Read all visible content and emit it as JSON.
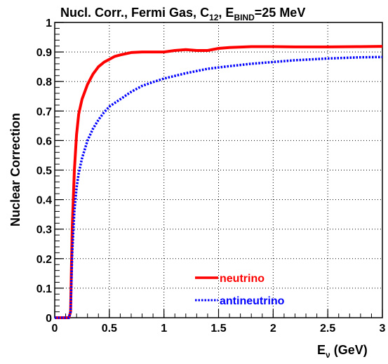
{
  "chart_data": {
    "type": "line",
    "title": {
      "prefix": "Nucl. Corr.,  Fermi Gas, C",
      "sub1": "12",
      "mid": ", E",
      "sub2": "BIND",
      "suffix": "=25 MeV"
    },
    "xlabel": {
      "main": "E",
      "sub": "ν",
      "suffix": " (GeV)"
    },
    "ylabel": "Nuclear Correction",
    "xlim": [
      0,
      3
    ],
    "ylim": [
      0,
      1
    ],
    "xticks": [
      {
        "value": 0,
        "label": "0"
      },
      {
        "value": 0.5,
        "label": "0.5"
      },
      {
        "value": 1,
        "label": "1"
      },
      {
        "value": 1.5,
        "label": "1.5"
      },
      {
        "value": 2,
        "label": "2"
      },
      {
        "value": 2.5,
        "label": "2.5"
      },
      {
        "value": 3,
        "label": "3"
      }
    ],
    "yticks": [
      {
        "value": 0,
        "label": "0"
      },
      {
        "value": 0.1,
        "label": "0.1"
      },
      {
        "value": 0.2,
        "label": "0.2"
      },
      {
        "value": 0.3,
        "label": "0.3"
      },
      {
        "value": 0.4,
        "label": "0.4"
      },
      {
        "value": 0.5,
        "label": "0.5"
      },
      {
        "value": 0.6,
        "label": "0.6"
      },
      {
        "value": 0.7,
        "label": "0.7"
      },
      {
        "value": 0.8,
        "label": "0.8"
      },
      {
        "value": 0.9,
        "label": "0.9"
      },
      {
        "value": 1,
        "label": "1"
      }
    ],
    "grid": true,
    "legend_position": "bottom-center",
    "series": [
      {
        "name": "neutrino",
        "color": "#ff0000",
        "style": "solid",
        "x": [
          0,
          0.13,
          0.145,
          0.16,
          0.18,
          0.2,
          0.22,
          0.25,
          0.3,
          0.35,
          0.4,
          0.45,
          0.5,
          0.55,
          0.6,
          0.7,
          0.8,
          0.9,
          1.0,
          1.1,
          1.2,
          1.3,
          1.4,
          1.5,
          1.6,
          1.8,
          2.0,
          2.2,
          2.5,
          2.8,
          3.0
        ],
        "y": [
          0,
          0,
          0.02,
          0.3,
          0.5,
          0.62,
          0.69,
          0.74,
          0.79,
          0.825,
          0.85,
          0.865,
          0.875,
          0.885,
          0.89,
          0.898,
          0.9,
          0.9,
          0.9,
          0.905,
          0.908,
          0.905,
          0.905,
          0.912,
          0.915,
          0.918,
          0.918,
          0.917,
          0.917,
          0.918,
          0.919
        ]
      },
      {
        "name": "antineutrino",
        "color": "#0000ff",
        "style": "dotted",
        "x": [
          0,
          0.13,
          0.145,
          0.16,
          0.18,
          0.2,
          0.22,
          0.25,
          0.3,
          0.35,
          0.4,
          0.45,
          0.5,
          0.6,
          0.7,
          0.8,
          0.9,
          1.0,
          1.2,
          1.4,
          1.6,
          1.8,
          2.0,
          2.2,
          2.5,
          2.8,
          3.0
        ],
        "y": [
          0,
          0,
          0.02,
          0.22,
          0.36,
          0.44,
          0.49,
          0.54,
          0.6,
          0.64,
          0.67,
          0.695,
          0.715,
          0.74,
          0.765,
          0.785,
          0.798,
          0.81,
          0.828,
          0.843,
          0.852,
          0.86,
          0.866,
          0.872,
          0.878,
          0.882,
          0.883
        ]
      }
    ]
  }
}
